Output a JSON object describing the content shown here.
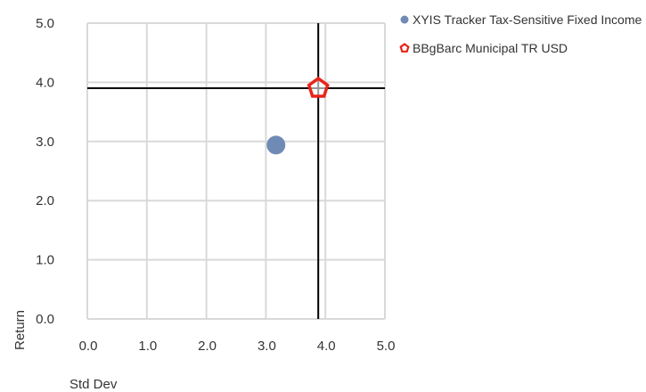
{
  "chart_data": {
    "type": "scatter",
    "xlabel": "Std Dev",
    "ylabel": "Return",
    "xlim": [
      0,
      5
    ],
    "ylim": [
      0,
      5
    ],
    "xticks": [
      "0.0",
      "1.0",
      "2.0",
      "3.0",
      "4.0",
      "5.0"
    ],
    "yticks": [
      "0.0",
      "1.0",
      "2.0",
      "3.0",
      "4.0",
      "5.0"
    ],
    "grid": true,
    "legend_position": "top-right",
    "series": [
      {
        "name": "XYIS Tracker Tax-Sensitive Fixed Income",
        "x": 3.17,
        "y": 2.94,
        "marker": "circle",
        "color": "#6f8bb5"
      },
      {
        "name": "BBgBarc Municipal TR USD",
        "x": 3.88,
        "y": 3.9,
        "marker": "pentagon",
        "color": "#e8241a"
      }
    ],
    "crosshair": {
      "x": 3.88,
      "y": 3.9,
      "color": "#000000"
    }
  }
}
